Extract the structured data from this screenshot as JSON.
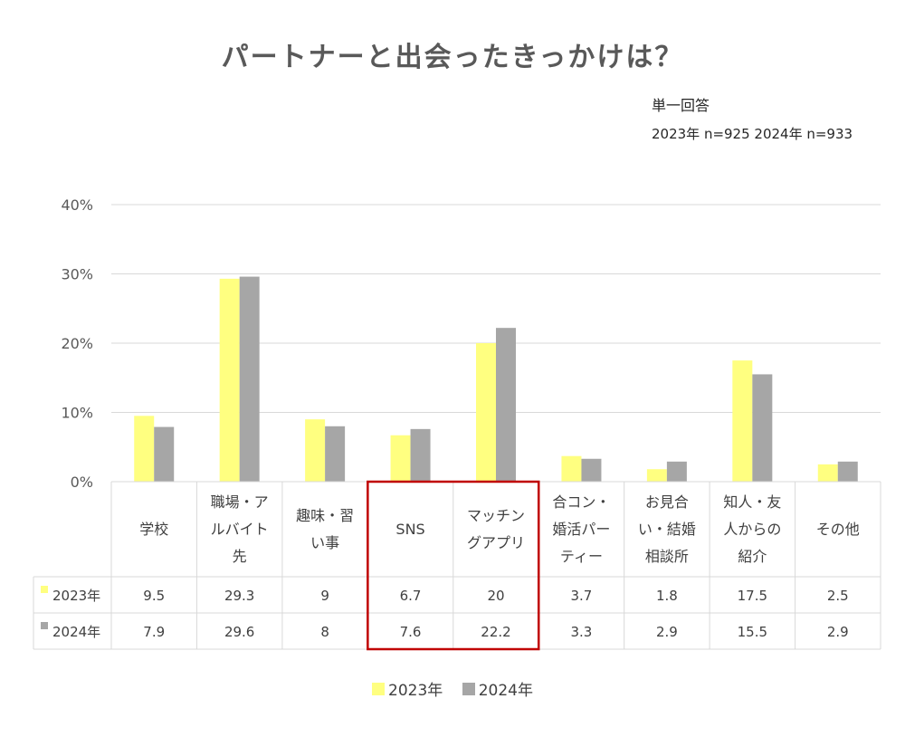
{
  "title": "パートナーと出会ったきっかけは？",
  "note_line1": "単一回答",
  "note_line2": "2023年 n=925 2024年 n=933",
  "colors": {
    "2023": "#ffff80",
    "2024": "#a6a6a6",
    "highlight": "#c00000",
    "grid": "#d9d9d9"
  },
  "chart_data": {
    "type": "bar",
    "title": "パートナーと出会ったきっかけは？",
    "categories": [
      "学校",
      "職場・アルバイト先",
      "趣味・習い事",
      "SNS",
      "マッチングアプリ",
      "合コン・婚活パーティー",
      "お見合い・結婚相談所",
      "知人・友人からの紹介",
      "その他"
    ],
    "category_lines": [
      [
        "学校"
      ],
      [
        "職場・ア",
        "ルバイト",
        "先"
      ],
      [
        "趣味・習",
        "い事"
      ],
      [
        "SNS"
      ],
      [
        "マッチン",
        "グアプリ"
      ],
      [
        "合コン・",
        "婚活パー",
        "ティー"
      ],
      [
        "お見合",
        "い・結婚",
        "相談所"
      ],
      [
        "知人・友",
        "人からの",
        "紹介"
      ],
      [
        "その他"
      ]
    ],
    "series": [
      {
        "name": "2023年",
        "values": [
          9.5,
          29.3,
          9,
          6.7,
          20,
          3.7,
          1.8,
          17.5,
          2.5
        ]
      },
      {
        "name": "2024年",
        "values": [
          7.9,
          29.6,
          8,
          7.6,
          22.2,
          3.3,
          2.9,
          15.5,
          2.9
        ]
      }
    ],
    "series_value_labels": [
      [
        "9.5",
        "29.3",
        "9",
        "6.7",
        "20",
        "3.7",
        "1.8",
        "17.5",
        "2.5"
      ],
      [
        "7.9",
        "29.6",
        "8",
        "7.6",
        "22.2",
        "3.3",
        "2.9",
        "15.5",
        "2.9"
      ]
    ],
    "yticks": [
      "0%",
      "10%",
      "20%",
      "30%",
      "40%"
    ],
    "ylim": [
      0,
      40
    ],
    "unit": "%",
    "grid": true,
    "data_table": true,
    "legend_position": "bottom",
    "highlighted_categories": [
      "SNS",
      "マッチングアプリ"
    ]
  }
}
